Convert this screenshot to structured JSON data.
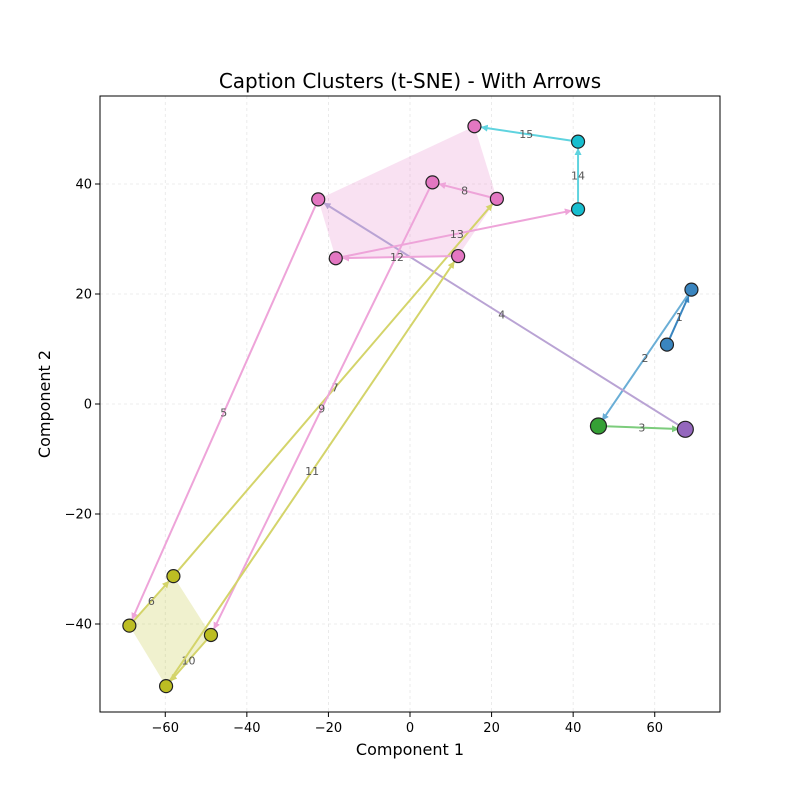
{
  "chart_data": {
    "type": "scatter",
    "title": "Caption Clusters (t-SNE) - With Arrows",
    "xlabel": "Component 1",
    "ylabel": "Component 2",
    "xlim": [
      -76,
      76
    ],
    "ylim": [
      -56,
      56
    ],
    "xticks": [
      -60,
      -40,
      -20,
      0,
      20,
      40,
      60
    ],
    "yticks": [
      -40,
      -20,
      0,
      20,
      40
    ],
    "xtick_labels": [
      "−60",
      "−40",
      "−20",
      "0",
      "20",
      "40",
      "60"
    ],
    "ytick_labels": [
      "−40",
      "−20",
      "0",
      "20",
      "40"
    ],
    "grid": true,
    "clusters": [
      {
        "color": "#3a85bf",
        "hull": false,
        "points": [
          [
            63,
            10.8
          ],
          [
            69,
            20.8
          ]
        ]
      },
      {
        "color": "#35a035",
        "hull": false,
        "points": [
          [
            46.2,
            -4
          ]
        ]
      },
      {
        "color": "#9467bd",
        "hull": false,
        "points": [
          [
            67.5,
            -4.6
          ]
        ]
      },
      {
        "color": "#e377c2",
        "hull": true,
        "points": [
          [
            15.8,
            50.5
          ],
          [
            -22.5,
            37.2
          ],
          [
            5.5,
            40.3
          ],
          [
            21.3,
            37.3
          ],
          [
            -18.2,
            26.5
          ],
          [
            11.8,
            26.9
          ]
        ]
      },
      {
        "color": "#bcbd22",
        "hull": true,
        "points": [
          [
            -58,
            -31.3
          ],
          [
            -68.8,
            -40.3
          ],
          [
            -48.8,
            -42
          ],
          [
            -59.8,
            -51.3
          ]
        ]
      },
      {
        "color": "#17becf",
        "hull": false,
        "points": [
          [
            41.2,
            47.7
          ],
          [
            41.2,
            35.4
          ]
        ]
      }
    ],
    "arrows": [
      {
        "label": "1",
        "from": [
          63,
          10.8
        ],
        "to": [
          69,
          20.8
        ],
        "color": "#3a85bf"
      },
      {
        "label": "2",
        "from": [
          69,
          20.8
        ],
        "to": [
          46.2,
          -4
        ],
        "color": "#6aaed6"
      },
      {
        "label": "3",
        "from": [
          46.2,
          -4
        ],
        "to": [
          67.5,
          -4.6
        ],
        "color": "#7ccc7c"
      },
      {
        "label": "4",
        "from": [
          67.5,
          -4.6
        ],
        "to": [
          -22.5,
          37.2
        ],
        "color": "#b9a3d4"
      },
      {
        "label": "5",
        "from": [
          -22.5,
          37.2
        ],
        "to": [
          -68.8,
          -40.3
        ],
        "color": "#eea4d9"
      },
      {
        "label": "6",
        "from": [
          -68.8,
          -40.3
        ],
        "to": [
          -58,
          -31.3
        ],
        "color": "#d4d46a"
      },
      {
        "label": "7",
        "from": [
          -58,
          -31.3
        ],
        "to": [
          21.3,
          37.3
        ],
        "color": "#d4d46a"
      },
      {
        "label": "8",
        "from": [
          21.3,
          37.3
        ],
        "to": [
          5.5,
          40.3
        ],
        "color": "#eea4d9"
      },
      {
        "label": "9",
        "from": [
          5.5,
          40.3
        ],
        "to": [
          -48.8,
          -42
        ],
        "color": "#eea4d9"
      },
      {
        "label": "10",
        "from": [
          -48.8,
          -42
        ],
        "to": [
          -59.8,
          -51.3
        ],
        "color": "#d4d46a"
      },
      {
        "label": "11",
        "from": [
          -59.8,
          -51.3
        ],
        "to": [
          11.8,
          26.9
        ],
        "color": "#d4d46a"
      },
      {
        "label": "12",
        "from": [
          11.8,
          26.9
        ],
        "to": [
          -18.2,
          26.5
        ],
        "color": "#eea4d9"
      },
      {
        "label": "13",
        "from": [
          -18.2,
          26.5
        ],
        "to": [
          41.2,
          35.4
        ],
        "color": "#eea4d9"
      },
      {
        "label": "14",
        "from": [
          41.2,
          35.4
        ],
        "to": [
          41.2,
          47.7
        ],
        "color": "#5fd3df"
      },
      {
        "label": "15",
        "from": [
          41.2,
          47.7
        ],
        "to": [
          15.8,
          50.5
        ],
        "color": "#5fd3df"
      }
    ]
  }
}
